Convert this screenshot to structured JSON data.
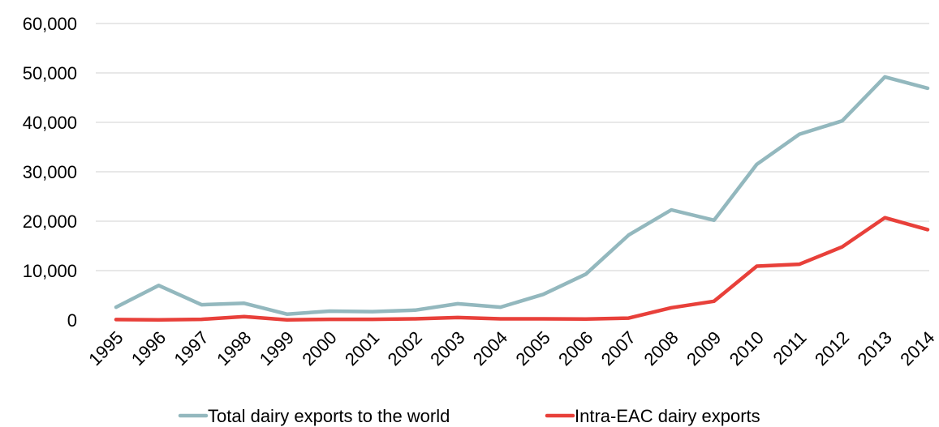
{
  "chart_data": {
    "type": "line",
    "categories": [
      "1995",
      "1996",
      "1997",
      "1998",
      "1999",
      "2000",
      "2001",
      "2002",
      "2003",
      "2004",
      "2005",
      "2006",
      "2007",
      "2008",
      "2009",
      "2010",
      "2011",
      "2012",
      "2013",
      "2014"
    ],
    "ylim": [
      0,
      60000
    ],
    "yticks": [
      0,
      10000,
      20000,
      30000,
      40000,
      50000,
      60000
    ],
    "ytick_labels": [
      "0",
      "10,000",
      "20,000",
      "30,000",
      "40,000",
      "50,000",
      "60,000"
    ],
    "grid": true,
    "legend_position": "bottom",
    "series": [
      {
        "name": "Total dairy exports to the world",
        "color": "#93b8be",
        "values": [
          2600,
          7000,
          3100,
          3400,
          1200,
          1800,
          1700,
          2000,
          3300,
          2600,
          5200,
          9300,
          17200,
          22300,
          20200,
          31500,
          37600,
          40300,
          49200,
          46900
        ]
      },
      {
        "name": "Intra-EAC dairy exports",
        "color": "#e8403a",
        "values": [
          100,
          50,
          150,
          700,
          50,
          150,
          150,
          250,
          500,
          250,
          250,
          200,
          400,
          2500,
          3800,
          10900,
          11300,
          14800,
          20700,
          18300
        ]
      }
    ]
  }
}
